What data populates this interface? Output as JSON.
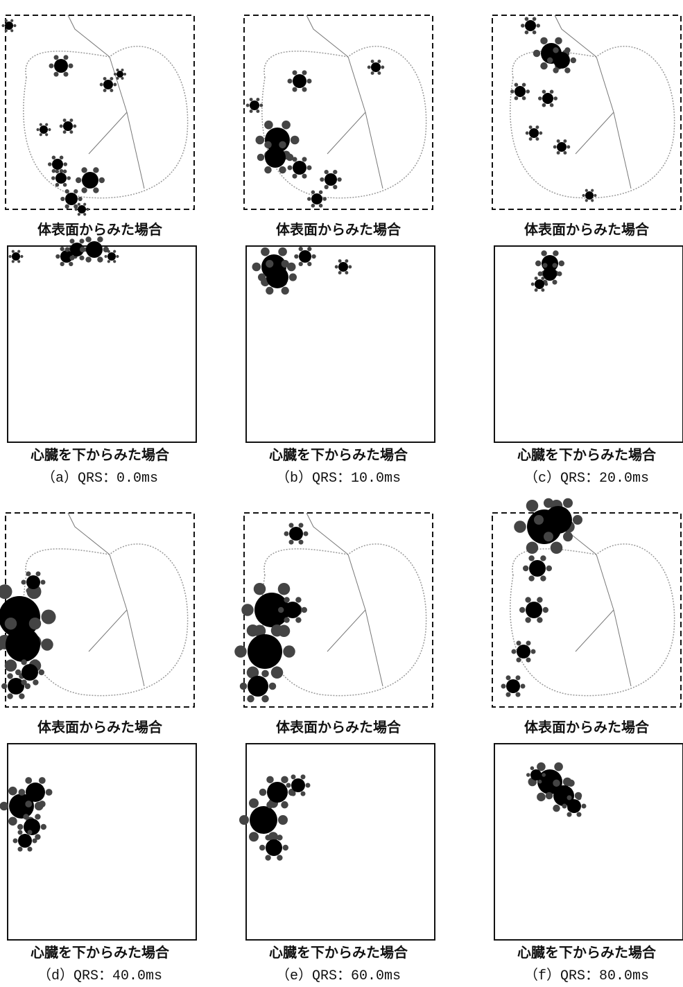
{
  "figures": [
    {
      "surface_caption": "体表面からみた場合",
      "bottom_caption": "心臓を下からみた場合",
      "label": "（a）QRS：0.0ms"
    },
    {
      "surface_caption": "体表面からみた場合",
      "bottom_caption": "心臓を下からみた場合",
      "label": "（b）QRS：10.0ms"
    },
    {
      "surface_caption": "体表面からみた場合",
      "bottom_caption": "心臓を下からみた場合",
      "label": "（c）QRS：20.0ms"
    },
    {
      "surface_caption": "体表面からみた場合",
      "bottom_caption": "心臓を下からみた場合",
      "label": "（d）QRS：40.0ms"
    },
    {
      "surface_caption": "体表面からみた場合",
      "bottom_caption": "心臓を下からみた場合",
      "label": "（e）QRS：60.0ms"
    },
    {
      "surface_caption": "体表面からみた場合",
      "bottom_caption": "心臓を下からみた場合",
      "label": "（f）QRS：80.0ms"
    }
  ]
}
